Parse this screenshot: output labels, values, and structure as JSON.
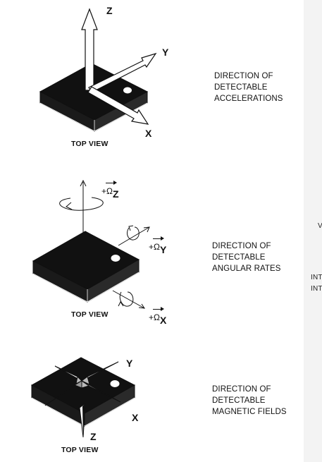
{
  "panels": {
    "accel": {
      "caption": [
        "DIRECTION OF",
        "DETECTABLE",
        "ACCELERATIONS"
      ],
      "view_label": "TOP VIEW",
      "axes": {
        "z": "Z",
        "y": "Y",
        "x": "X"
      }
    },
    "gyro": {
      "caption": [
        "DIRECTION OF",
        "DETECTABLE",
        "ANGULAR RATES"
      ],
      "view_label": "TOP VIEW",
      "rates": {
        "z": {
          "prefix": "+Ω",
          "axis": "Z"
        },
        "y": {
          "prefix": "+Ω",
          "axis": "Y"
        },
        "x": {
          "prefix": "+Ω",
          "axis": "X"
        }
      }
    },
    "mag": {
      "caption": [
        "DIRECTION OF",
        "DETECTABLE",
        "MAGNETIC FIELDS"
      ],
      "view_label": "TOP VIEW",
      "axes": {
        "y": "Y",
        "x": "X",
        "z": "Z"
      }
    }
  },
  "edge_fragments": [
    "V",
    "INT",
    "INT"
  ]
}
